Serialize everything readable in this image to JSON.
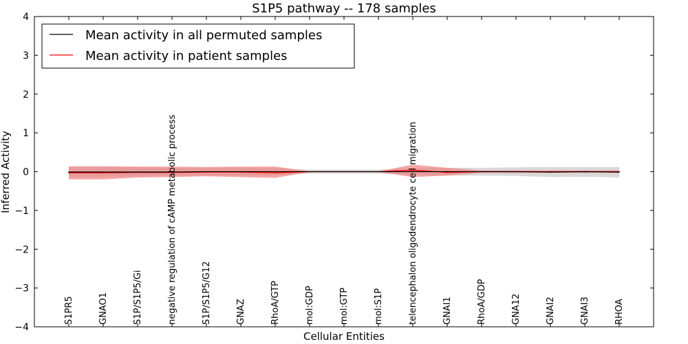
{
  "chart_data": {
    "type": "line",
    "title": "S1P5 pathway -- 178 samples",
    "xlabel": "Cellular Entities",
    "ylabel": "Inferred Activity",
    "ylim": [
      -4,
      4
    ],
    "yticks": [
      4,
      3,
      2,
      1,
      0,
      -1,
      -2,
      -3,
      -4
    ],
    "ytick_labels": [
      "4",
      "3",
      "2",
      "1",
      "0",
      "−1",
      "−2",
      "−3",
      "−4"
    ],
    "legend_placement": "top-left",
    "categories": [
      "S1PR5",
      "GNAO1",
      "S1P/S1P5/Gi",
      "negative regulation of cAMP metabolic process",
      "S1P/S1P5/G12",
      "GNAZ",
      "RhoA/GTP",
      "mol:GDP",
      "mol:GTP",
      "mol:S1P",
      "telencephalon oligodendrocyte cell migration",
      "GNAI1",
      "RhoA/GDP",
      "GNA12",
      "GNAI2",
      "GNAI3",
      "RHOA"
    ],
    "series": [
      {
        "name": "Mean activity in all permuted samples",
        "color": "#000000",
        "band_color": "#bfbfbf",
        "values": [
          -0.01,
          -0.01,
          -0.01,
          -0.01,
          0.0,
          0.0,
          0.0,
          0.0,
          0.0,
          0.0,
          0.0,
          0.0,
          0.0,
          0.0,
          -0.01,
          0.0,
          -0.01
        ],
        "upper": [
          0.12,
          0.12,
          0.11,
          0.1,
          0.1,
          0.1,
          0.09,
          0.05,
          0.05,
          0.05,
          0.08,
          0.1,
          0.1,
          0.11,
          0.12,
          0.12,
          0.12
        ],
        "lower": [
          -0.13,
          -0.13,
          -0.12,
          -0.11,
          -0.1,
          -0.1,
          -0.09,
          -0.05,
          -0.05,
          -0.05,
          -0.08,
          -0.1,
          -0.1,
          -0.11,
          -0.14,
          -0.13,
          -0.15
        ]
      },
      {
        "name": "Mean activity in patient samples",
        "color": "#ff0000",
        "band_color": "#f08080",
        "values": [
          -0.03,
          -0.03,
          -0.02,
          -0.02,
          -0.01,
          -0.01,
          -0.03,
          0.0,
          0.0,
          0.0,
          0.04,
          -0.02,
          0.0,
          0.0,
          0.0,
          0.0,
          0.0
        ],
        "upper": [
          0.14,
          0.14,
          0.13,
          0.13,
          0.12,
          0.13,
          0.13,
          0.01,
          0.01,
          0.01,
          0.18,
          0.1,
          0.03,
          0.03,
          0.03,
          0.03,
          0.03
        ],
        "lower": [
          -0.2,
          -0.2,
          -0.15,
          -0.14,
          -0.12,
          -0.14,
          -0.16,
          -0.01,
          -0.01,
          -0.01,
          -0.14,
          -0.1,
          -0.03,
          -0.03,
          -0.03,
          -0.03,
          -0.03
        ]
      }
    ]
  }
}
